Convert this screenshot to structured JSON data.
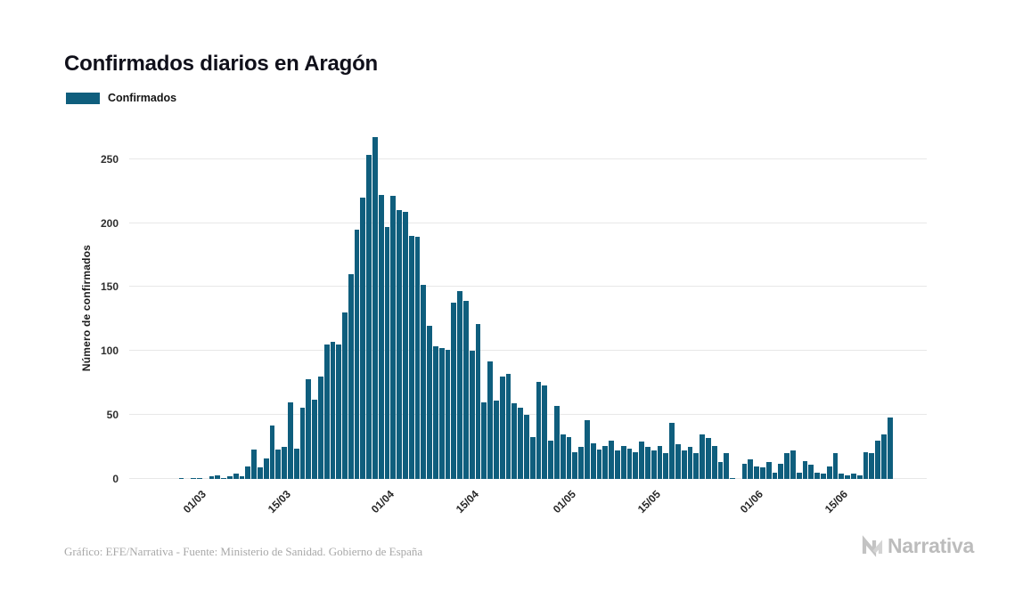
{
  "title": "Confirmados diarios en Aragón",
  "legend": {
    "label": "Confirmados",
    "color": "#0f5e7d"
  },
  "footer": {
    "credit": "Gráfico: EFE/Narrativa - Fuente: Ministerio de Sanidad. Gobierno de España",
    "brand": "Narrativa"
  },
  "chart_data": {
    "type": "bar",
    "title": "Confirmados diarios en Aragón",
    "xlabel": "",
    "ylabel": "Número de confirmados",
    "ylim": [
      0,
      270
    ],
    "y_ticks": [
      0,
      50,
      100,
      150,
      200,
      250
    ],
    "x_tick_labels": [
      "01/03",
      "15/03",
      "01/04",
      "15/04",
      "01/05",
      "15/05",
      "01/06",
      "15/06"
    ],
    "grid": true,
    "legend_position": "top-left",
    "bar_color": "#0f5e7d",
    "x": [
      "20/02",
      "21/02",
      "22/02",
      "23/02",
      "24/02",
      "25/02",
      "26/02",
      "27/02",
      "28/02",
      "29/02",
      "01/03",
      "02/03",
      "03/03",
      "04/03",
      "05/03",
      "06/03",
      "07/03",
      "08/03",
      "09/03",
      "10/03",
      "11/03",
      "12/03",
      "13/03",
      "14/03",
      "15/03",
      "16/03",
      "17/03",
      "18/03",
      "19/03",
      "20/03",
      "21/03",
      "22/03",
      "23/03",
      "24/03",
      "25/03",
      "26/03",
      "27/03",
      "28/03",
      "29/03",
      "30/03",
      "31/03",
      "01/04",
      "02/04",
      "03/04",
      "04/04",
      "05/04",
      "06/04",
      "07/04",
      "08/04",
      "09/04",
      "10/04",
      "11/04",
      "12/04",
      "13/04",
      "14/04",
      "15/04",
      "16/04",
      "17/04",
      "18/04",
      "19/04",
      "20/04",
      "21/04",
      "22/04",
      "23/04",
      "24/04",
      "25/04",
      "26/04",
      "27/04",
      "28/04",
      "29/04",
      "30/04",
      "01/05",
      "02/05",
      "03/05",
      "04/05",
      "05/05",
      "06/05",
      "07/05",
      "08/05",
      "09/05",
      "10/05",
      "11/05",
      "12/05",
      "13/05",
      "14/05",
      "15/05",
      "16/05",
      "17/05",
      "18/05",
      "19/05",
      "20/05",
      "21/05",
      "22/05",
      "23/05",
      "24/05",
      "25/05",
      "26/05",
      "27/05",
      "28/05",
      "29/05",
      "30/05",
      "31/05",
      "01/06",
      "02/06",
      "03/06",
      "04/06",
      "05/06",
      "06/06",
      "07/06",
      "08/06",
      "09/06",
      "10/06",
      "11/06",
      "12/06",
      "13/06",
      "14/06",
      "15/06",
      "16/06",
      "17/06",
      "18/06",
      "19/06",
      "20/06",
      "21/06",
      "22/06",
      "23/06"
    ],
    "series": [
      {
        "name": "Confirmados",
        "values": [
          0,
          0,
          0,
          0,
          0,
          0,
          0,
          1,
          0,
          1,
          1,
          0,
          2,
          3,
          1,
          2,
          4,
          2,
          10,
          23,
          9,
          16,
          42,
          23,
          25,
          60,
          24,
          56,
          78,
          62,
          80,
          105,
          107,
          105,
          130,
          160,
          195,
          220,
          253,
          267,
          222,
          197,
          221,
          210,
          209,
          190,
          189,
          152,
          120,
          104,
          102,
          101,
          138,
          147,
          139,
          100,
          121,
          60,
          92,
          61,
          80,
          82,
          59,
          56,
          50,
          33,
          76,
          73,
          30,
          57,
          35,
          33,
          21,
          25,
          46,
          28,
          23,
          26,
          30,
          22,
          26,
          24,
          21,
          29,
          25,
          22,
          26,
          20,
          44,
          27,
          22,
          25,
          20,
          35,
          32,
          26,
          13,
          20,
          1,
          0,
          12,
          15,
          10,
          9,
          13,
          5,
          12,
          20,
          22,
          5,
          14,
          11,
          5,
          4,
          10,
          20,
          4,
          3,
          4,
          3,
          21,
          20,
          30,
          35,
          48
        ]
      }
    ]
  }
}
